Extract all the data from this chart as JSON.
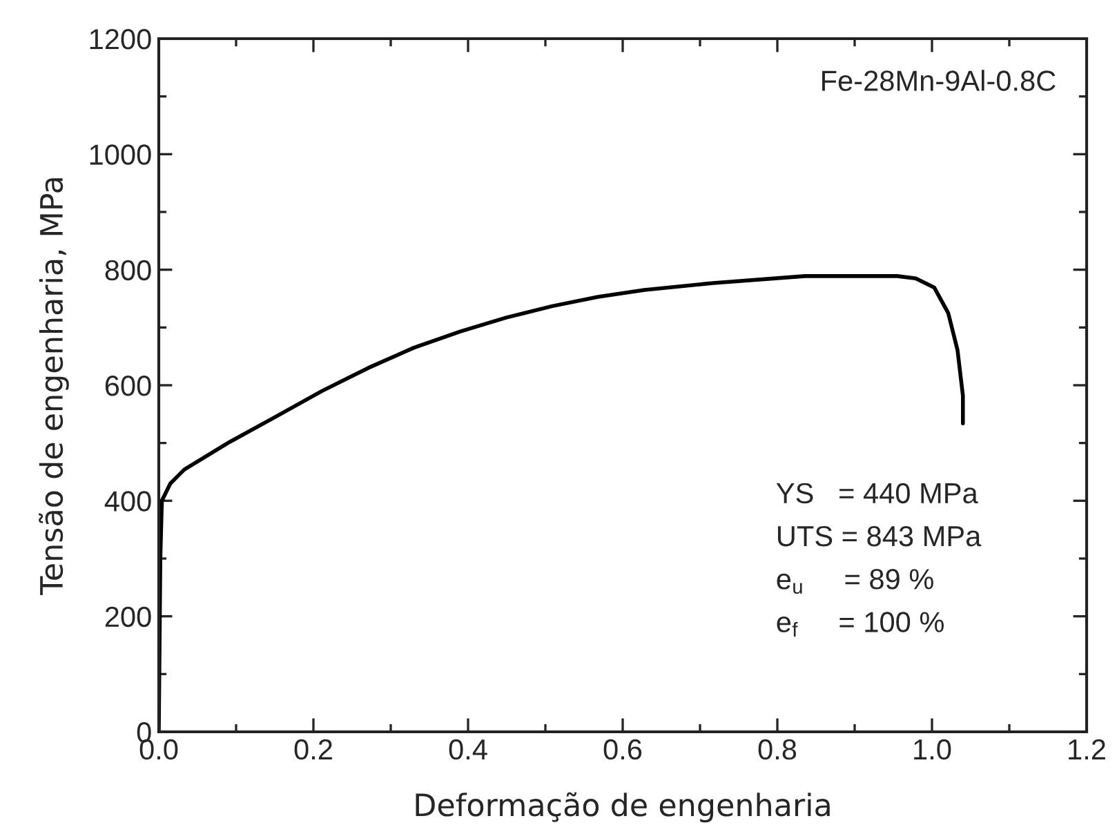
{
  "chart_data": {
    "type": "line",
    "xlabel": "Deformação de engenharia",
    "ylabel": "Tensão de engenharia, MPa",
    "series": [
      {
        "color": "#000000",
        "x": [
          0.0,
          0.002,
          0.004,
          0.015,
          0.033,
          0.092,
          0.152,
          0.211,
          0.271,
          0.33,
          0.39,
          0.449,
          0.509,
          0.568,
          0.628,
          0.717,
          0.836,
          0.955,
          0.979,
          1.003,
          1.021,
          1.033,
          1.04,
          1.04
        ],
        "values": [
          0,
          300,
          400,
          430,
          454,
          502,
          546,
          590,
          630,
          665,
          693,
          717,
          737,
          753,
          765,
          777,
          789,
          789,
          785,
          769,
          725,
          661,
          582,
          534
        ]
      }
    ],
    "xlim": [
      0.0,
      1.2
    ],
    "xticks": [
      {
        "value": 0.0,
        "label": "0.0"
      },
      {
        "value": 0.2,
        "label": "0.2"
      },
      {
        "value": 0.4,
        "label": "0.4"
      },
      {
        "value": 0.6,
        "label": "0.6"
      },
      {
        "value": 0.8,
        "label": "0.8"
      },
      {
        "value": 1.0,
        "label": "1.0"
      },
      {
        "value": 1.2,
        "label": "1.2"
      }
    ],
    "ylim": [
      0,
      1200
    ],
    "yticks": [
      0,
      200,
      400,
      600,
      800,
      1000,
      1200
    ],
    "annotations": [
      "Fe-28Mn-9Al-0.8C",
      "YS   = 440 MPa",
      "UTS = 843 MPa",
      "e$_{u}$     = 89 %",
      "e$_{f}$     = 100 %"
    ],
    "marker": "none",
    "line_style": "solid"
  }
}
